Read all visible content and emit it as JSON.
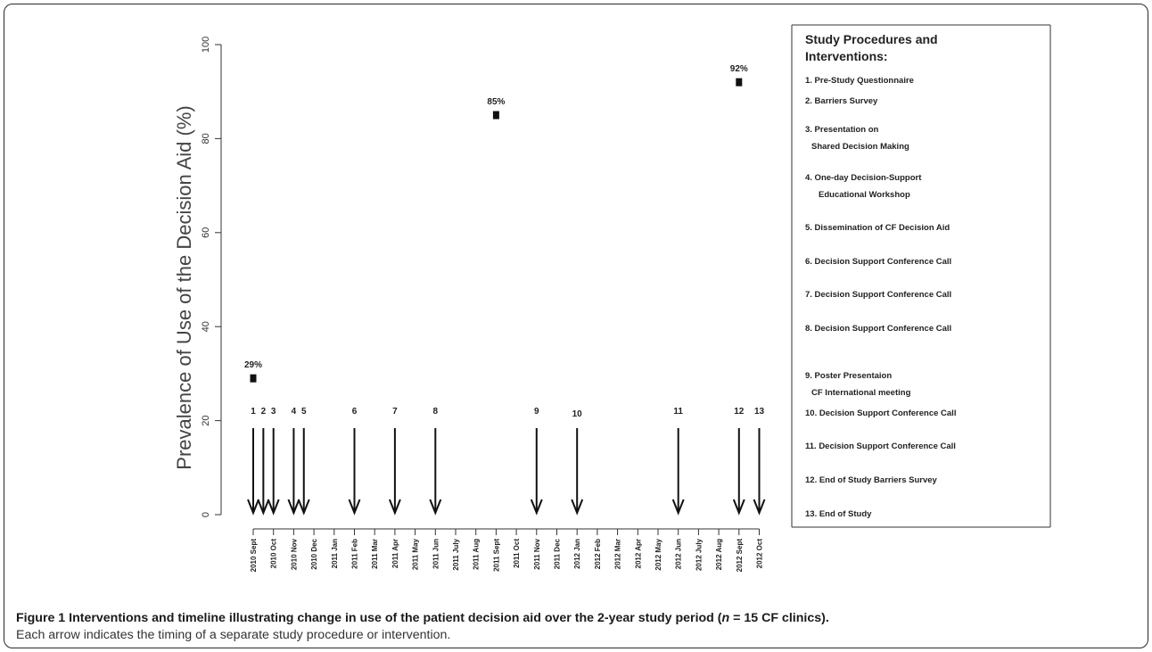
{
  "figure": {
    "label": "Figure 1",
    "caption_bold_pre": "Interventions and timeline illustrating change in use of the patient decision aid over the 2-year study period (",
    "caption_bold_n": "n",
    "caption_bold_post": " = 15 CF clinics).",
    "caption_text": "Each arrow indicates the timing of a separate study procedure or intervention."
  },
  "chart_data": {
    "type": "scatter",
    "ylabel": "Prevalence of Use of the Decision Aid (%)",
    "xlabel": "",
    "ylim": [
      0,
      100
    ],
    "yticks": [
      0,
      20,
      40,
      60,
      80,
      100
    ],
    "categories": [
      "2010 Sept",
      "2010 Oct",
      "2010 Nov",
      "2010 Dec",
      "2011 Jan",
      "2011 Feb",
      "2011 Mar",
      "2011 Apr",
      "2011 May",
      "2011 Jun",
      "2011 July",
      "2011 Aug",
      "2011 Sept",
      "2011 Oct",
      "2011 Nov",
      "2011 Dec",
      "2012 Jan",
      "2012 Feb",
      "2012 Mar",
      "2012 Apr",
      "2012 May",
      "2012 Jun",
      "2012 July",
      "2012 Aug",
      "2012 Sept",
      "2012 Oct"
    ],
    "points": [
      {
        "month_index": 0,
        "value": 29,
        "label": "29%"
      },
      {
        "month_index": 12,
        "value": 85,
        "label": "85%"
      },
      {
        "month_index": 24,
        "value": 92,
        "label": "92%"
      }
    ],
    "events": [
      {
        "number": "1",
        "month_index": 0.0
      },
      {
        "number": "2",
        "month_index": 0.5
      },
      {
        "number": "3",
        "month_index": 1.0
      },
      {
        "number": "4",
        "month_index": 2.0
      },
      {
        "number": "5",
        "month_index": 2.5
      },
      {
        "number": "6",
        "month_index": 5.0
      },
      {
        "number": "7",
        "month_index": 7.0
      },
      {
        "number": "8",
        "month_index": 9.0
      },
      {
        "number": "9",
        "month_index": 14.0
      },
      {
        "number": "10",
        "month_index": 16.0
      },
      {
        "number": "11",
        "month_index": 21.0
      },
      {
        "number": "12",
        "month_index": 24.0
      },
      {
        "number": "13",
        "month_index": 25.0
      }
    ],
    "legend": {
      "title_line1": "Study Procedures and",
      "title_line2": "Interventions:",
      "items": [
        [
          "1. Pre-Study Questionnaire"
        ],
        [
          "2. Barriers Survey"
        ],
        [
          "3. Presentation on",
          "Shared Decision Making"
        ],
        [
          "4. One-day Decision-Support",
          "Educational Workshop"
        ],
        [
          "5. Dissemination of CF Decision Aid"
        ],
        [
          "6. Decision Support Conference Call"
        ],
        [
          "7. Decision Support Conference Call"
        ],
        [
          "8. Decision Support Conference Call"
        ],
        [
          "9. Poster Presentaion",
          "CF International meeting"
        ],
        [
          "10. Decision Support Conference Call"
        ],
        [
          "11. Decision Support Conference Call"
        ],
        [
          "12. End of Study Barriers Survey"
        ],
        [
          "13. End of Study"
        ]
      ]
    }
  }
}
